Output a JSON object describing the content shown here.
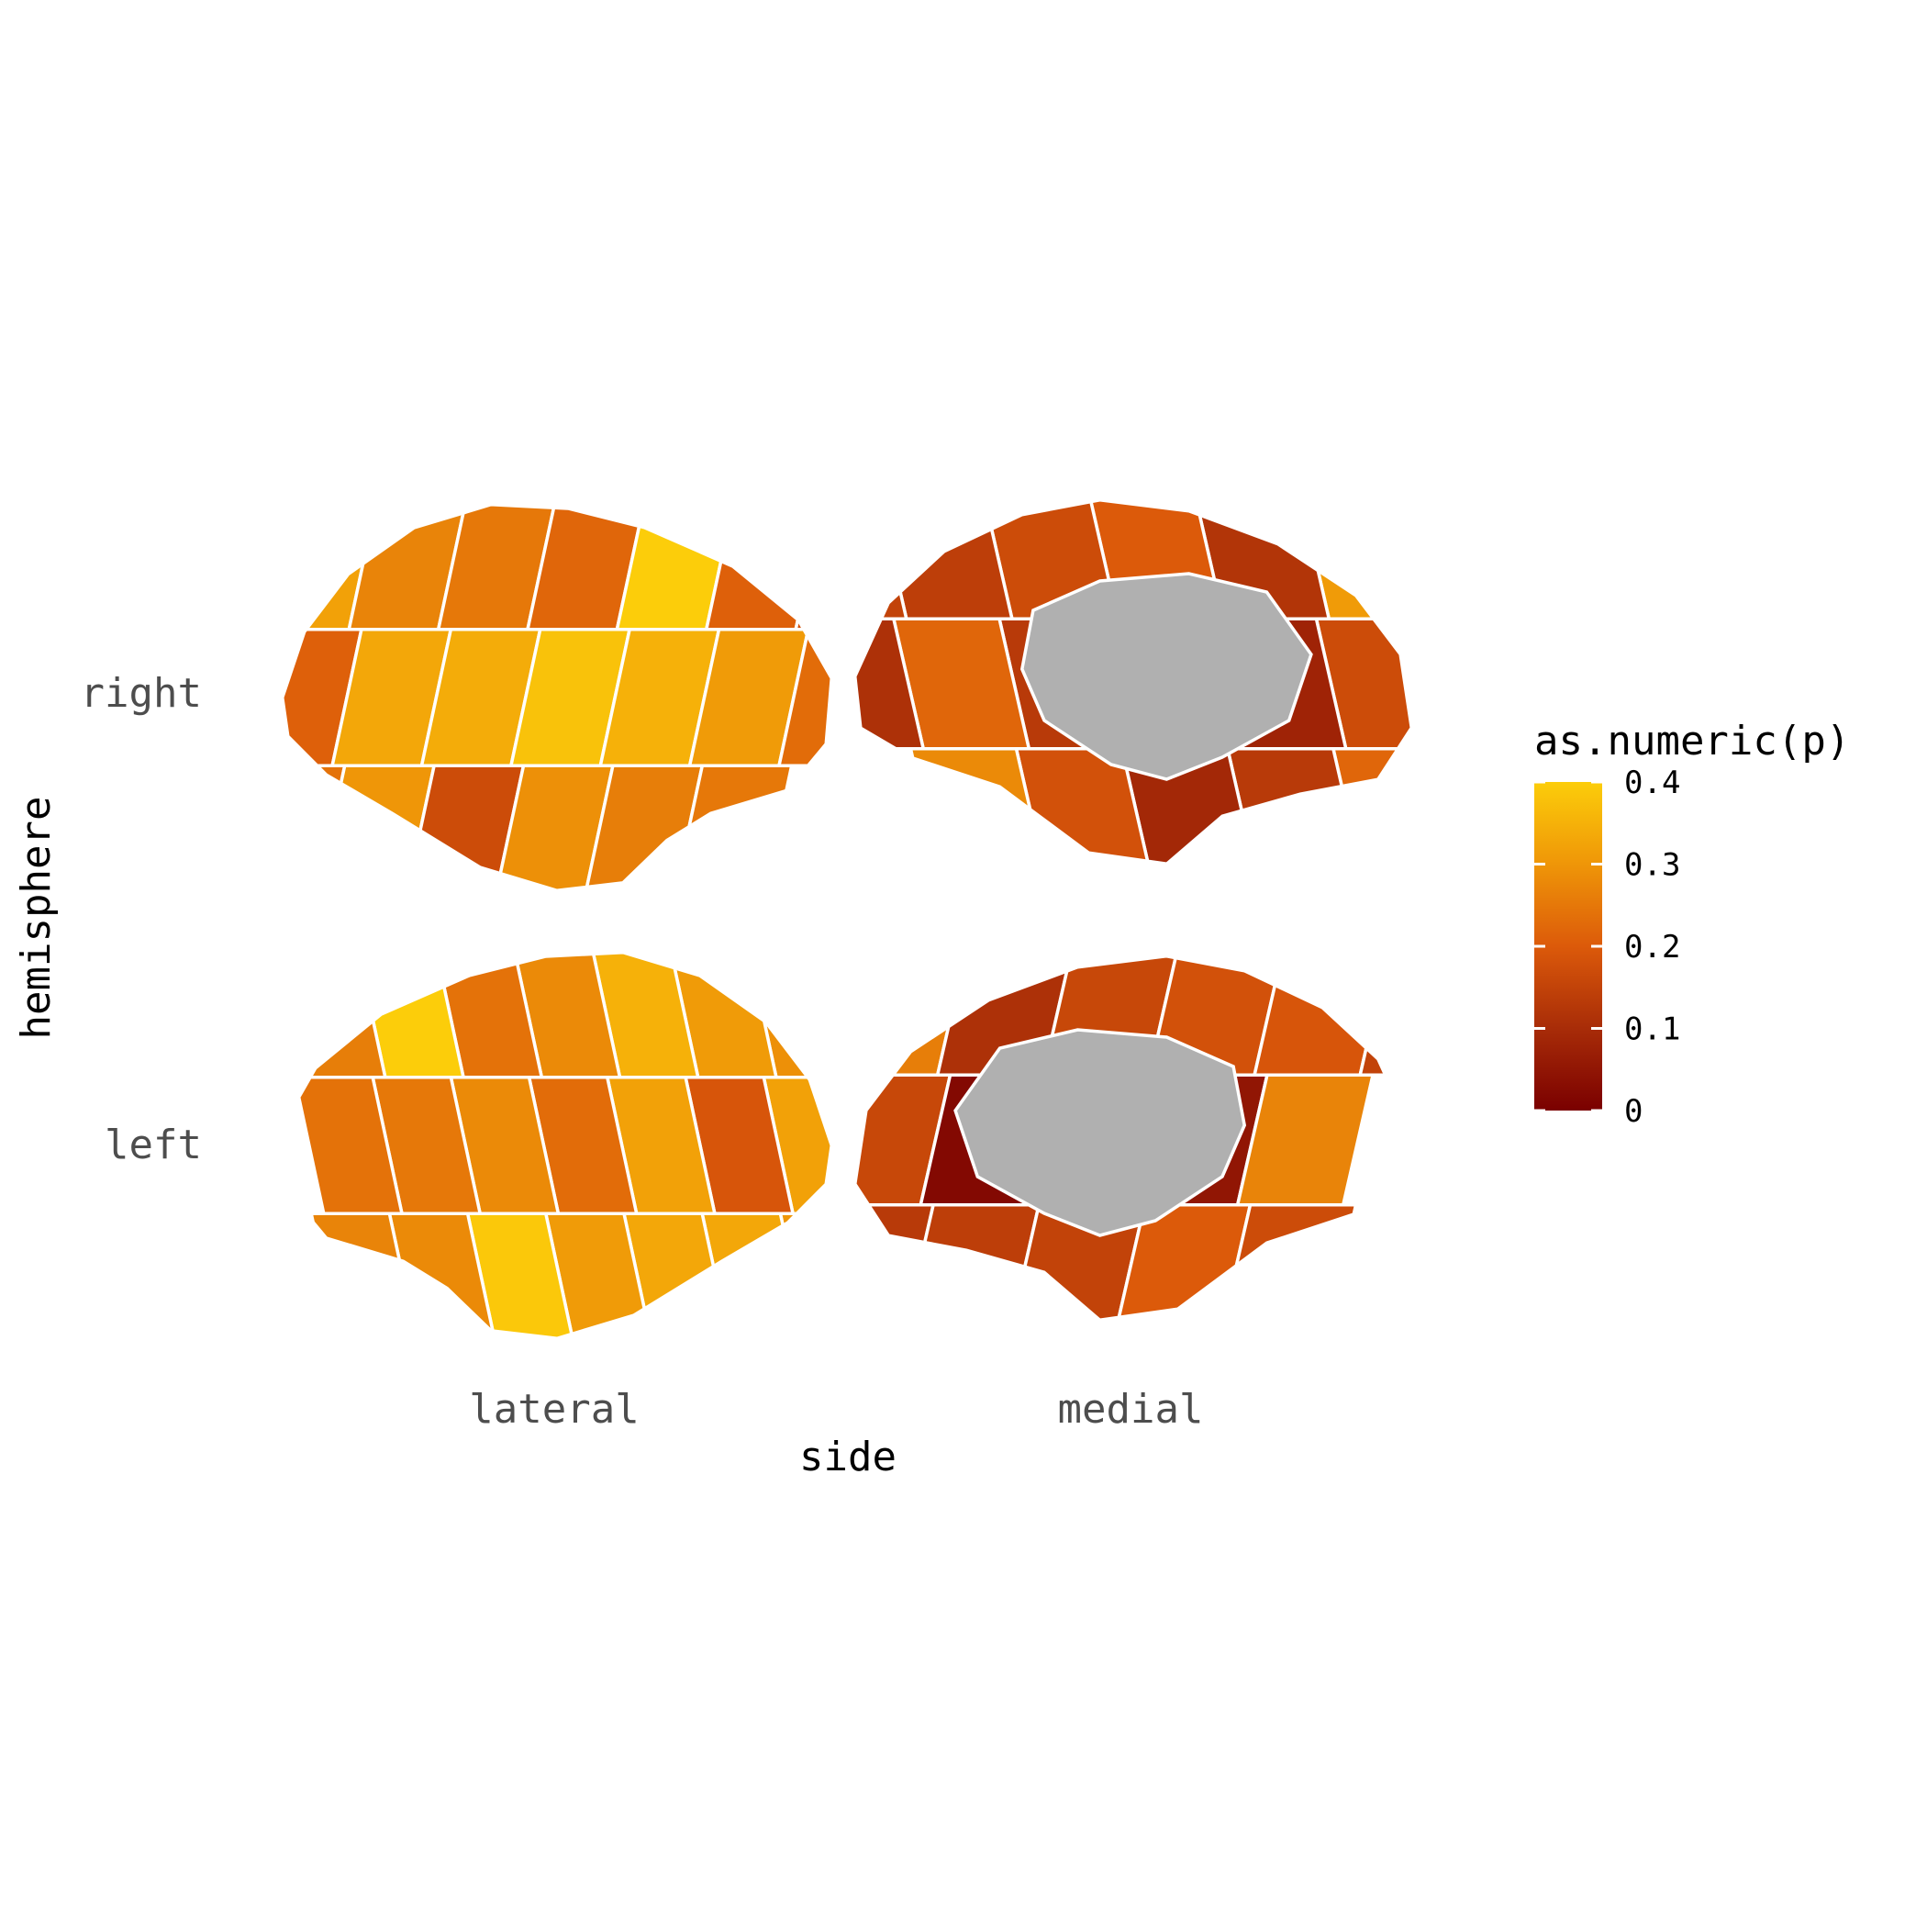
{
  "chart_data": {
    "type": "heatmap",
    "title": "",
    "xlabel": "side",
    "ylabel": "hemisphere",
    "x_categories": [
      "lateral",
      "medial"
    ],
    "y_categories": [
      "right",
      "left"
    ],
    "legend": {
      "title": "as.numeric(p)",
      "placement": "right",
      "range": [
        0,
        0.4
      ],
      "ticks": [
        "0",
        "0.1",
        "0.2",
        "0.3",
        "0.4"
      ],
      "tick_values": [
        0,
        0.1,
        0.2,
        0.3,
        0.4
      ],
      "colors": [
        "#7a0000",
        "#a82c08",
        "#dc5a0a",
        "#ef9608",
        "#fccd0a"
      ]
    },
    "missing_color": "#b0b0b0",
    "grid": false,
    "series": [
      {
        "hemisphere": "right",
        "side": "lateral",
        "regions": [
          {
            "p": 0.32
          },
          {
            "p": 0.21
          },
          {
            "p": 0.24
          },
          {
            "p": 0.27
          },
          {
            "p": 0.33
          },
          {
            "p": 0.3
          },
          {
            "p": 0.25
          },
          {
            "p": 0.34
          },
          {
            "p": 0.17
          },
          {
            "p": 0.22
          },
          {
            "p": 0.38
          },
          {
            "p": 0.29
          },
          {
            "p": 0.41
          },
          {
            "p": 0.35
          },
          {
            "p": 0.26
          },
          {
            "p": 0.21
          },
          {
            "p": 0.31
          },
          {
            "p": 0.25
          },
          {
            "p": 0.18
          },
          {
            "p": 0.23
          }
        ]
      },
      {
        "hemisphere": "right",
        "side": "medial",
        "regions": [
          {
            "p": 0.31
          },
          {
            "p": 0.17
          },
          {
            "p": 0.22
          },
          {
            "p": 0.12
          },
          {
            "p": 0.08
          },
          {
            "p": 0.13
          },
          {
            "p": 0.2
          },
          {
            "p": 0.18
          },
          {
            "p": 0.09
          },
          {
            "p": 0.17
          },
          {
            "p": 0.13
          },
          {
            "p": 0.18
          },
          {
            "p": 0.14
          },
          {
            "p": 0.22
          },
          {
            "p": 0.28
          },
          {
            "p": 0.15
          },
          {
            "p": 0.11
          }
        ]
      },
      {
        "hemisphere": "left",
        "side": "lateral",
        "regions": [
          {
            "p": 0.29
          },
          {
            "p": 0.32
          },
          {
            "p": 0.3
          },
          {
            "p": 0.31
          },
          {
            "p": 0.19
          },
          {
            "p": 0.33
          },
          {
            "p": 0.35
          },
          {
            "p": 0.32
          },
          {
            "p": 0.33
          },
          {
            "p": 0.28
          },
          {
            "p": 0.23
          },
          {
            "p": 0.31
          },
          {
            "p": 0.24
          },
          {
            "p": 0.28
          },
          {
            "p": 0.39
          },
          {
            "p": 0.42
          },
          {
            "p": 0.25
          },
          {
            "p": 0.28
          },
          {
            "p": 0.26
          },
          {
            "p": 0.24
          },
          {
            "p": 0.27
          },
          {
            "p": 0.31
          }
        ]
      },
      {
        "hemisphere": "left",
        "side": "medial",
        "regions": [
          {
            "p": 0.26
          },
          {
            "p": 0.16
          },
          {
            "p": 0.13
          },
          {
            "p": 0.11
          },
          {
            "p": 0.02
          },
          {
            "p": 0.14
          },
          {
            "p": 0.16
          },
          {
            "p": 0.19
          },
          {
            "p": 0.15
          },
          {
            "p": 0.18
          },
          {
            "p": 0.05
          },
          {
            "p": 0.2
          },
          {
            "p": 0.19
          },
          {
            "p": 0.27
          },
          {
            "p": 0.17
          },
          {
            "p": 0.15
          }
        ]
      }
    ]
  }
}
